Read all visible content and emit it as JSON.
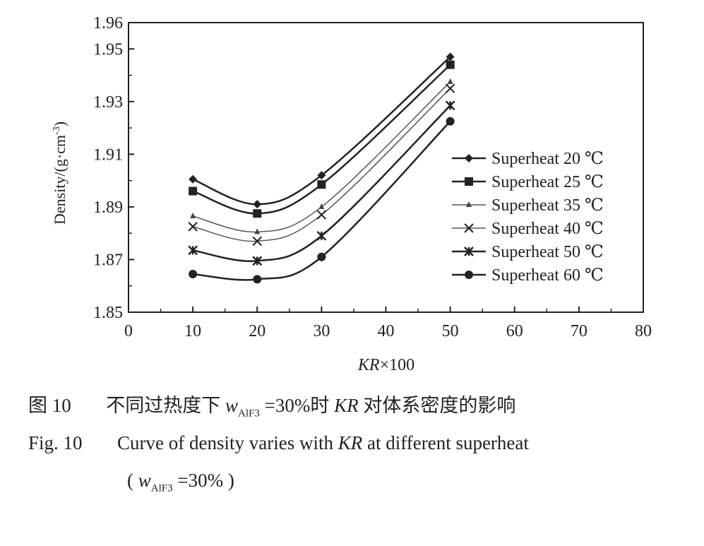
{
  "chart_data": {
    "type": "line",
    "xlabel_parts": {
      "var": "KR",
      "suffix": "×100"
    },
    "ylabel": "Density/(g·cm",
    "ylabel_sup": "-3",
    "ylabel_close": ")",
    "xlim": [
      0,
      80
    ],
    "ylim": [
      1.85,
      1.96
    ],
    "xticks": [
      "0",
      "10",
      "20",
      "30",
      "40",
      "50",
      "60",
      "70",
      "80"
    ],
    "yticks": [
      "1.85",
      "1.87",
      "1.89",
      "1.91",
      "1.93",
      "1.95",
      "1.96"
    ],
    "ytick_values": [
      1.85,
      1.87,
      1.89,
      1.91,
      1.93,
      1.95,
      1.96
    ],
    "xtick_values": [
      0,
      10,
      20,
      30,
      40,
      50,
      60,
      70,
      80
    ],
    "legend_position": "right",
    "x": [
      10,
      20,
      30,
      50
    ],
    "series": [
      {
        "name": "Superheat 20 ℃",
        "marker": "diamond",
        "values": [
          1.9005,
          1.891,
          1.902,
          1.947
        ]
      },
      {
        "name": "Superheat 25 ℃",
        "marker": "square",
        "values": [
          1.896,
          1.8875,
          1.8985,
          1.944
        ]
      },
      {
        "name": "Superheat 35 ℃",
        "marker": "triangle",
        "values": [
          1.8865,
          1.8805,
          1.89,
          1.9375
        ]
      },
      {
        "name": "Superheat 40 ℃",
        "marker": "x",
        "values": [
          1.8825,
          1.877,
          1.887,
          1.935
        ]
      },
      {
        "name": "Superheat 50 ℃",
        "marker": "asterisk",
        "values": [
          1.8735,
          1.8695,
          1.879,
          1.9285
        ]
      },
      {
        "name": "Superheat 60 ℃",
        "marker": "circle",
        "values": [
          1.8645,
          1.8625,
          1.871,
          1.9225
        ]
      }
    ]
  },
  "caption": {
    "cn_label": "图 10",
    "cn_text_1": "不同过热度下",
    "w_symbol": "w",
    "w_sub": "AlF",
    "w_sub2": "3",
    "cn_eq": "=30%时",
    "cn_kr": "KR",
    "cn_text_2": "对体系密度的影响",
    "en_label": "Fig. 10",
    "en_text_1": "Curve of density varies with",
    "en_kr": "KR",
    "en_text_2": "at different superheat",
    "en_paren_open": "(",
    "en_eq": "=30%",
    "en_paren_close": ")"
  }
}
